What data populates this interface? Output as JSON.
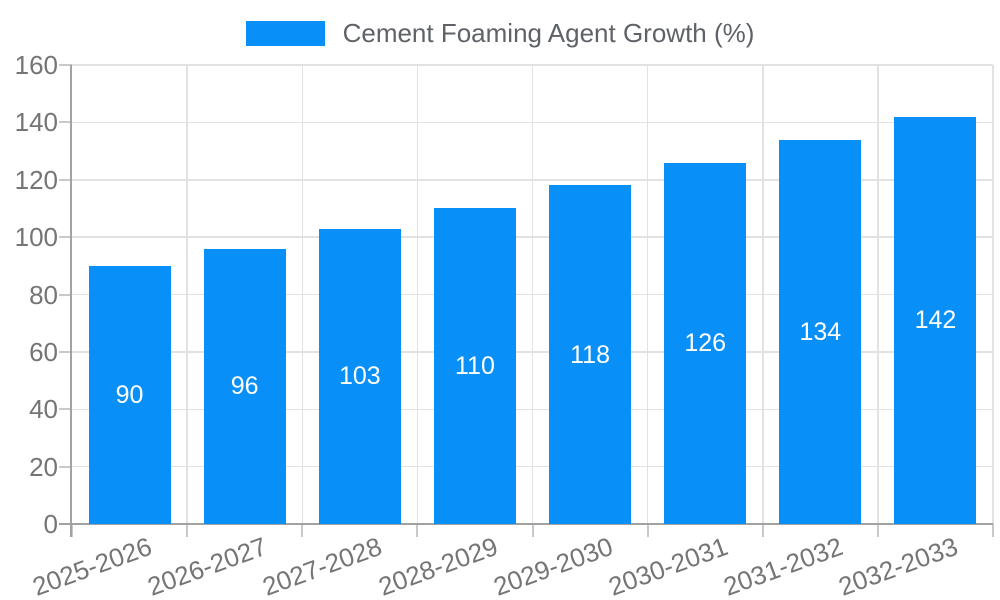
{
  "legend": {
    "label": "Cement Foaming Agent Growth (%)"
  },
  "chart_data": {
    "type": "bar",
    "title": "Cement Foaming Agent Growth (%)",
    "categories": [
      "2025-2026",
      "2026-2027",
      "2027-2028",
      "2028-2029",
      "2029-2030",
      "2030-2031",
      "2031-2032",
      "2032-2033"
    ],
    "values": [
      90,
      96,
      103,
      110,
      118,
      126,
      134,
      142
    ],
    "xlabel": "",
    "ylabel": "",
    "ylim": [
      0,
      160
    ],
    "yticks": [
      0,
      20,
      40,
      60,
      80,
      100,
      120,
      140,
      160
    ],
    "grid": true,
    "legend_position": "top-center",
    "value_labels_inside_bars": true,
    "x_label_rotation_deg": -20
  },
  "colors": {
    "bar": "#0990f8",
    "bar_value_label": "#ffffff",
    "axis_line": "#a2a2a2",
    "tick_stub": "#c9c9c9",
    "grid_line": "#e2e2e2",
    "tick_label": "#757575",
    "legend_text": "#5f6368",
    "background": "#ffffff"
  }
}
